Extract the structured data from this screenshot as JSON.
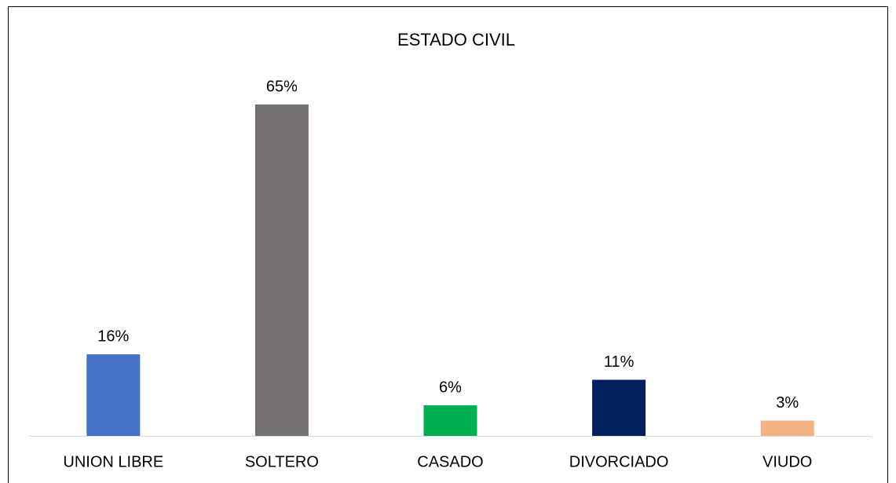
{
  "chart_data": {
    "type": "bar",
    "title": "ESTADO CIVIL",
    "categories": [
      "UNION LIBRE",
      "SOLTERO",
      "CASADO",
      "DIVORCIADO",
      "VIUDO"
    ],
    "values": [
      16,
      65,
      6,
      11,
      3
    ],
    "value_labels": [
      "16%",
      "65%",
      "6%",
      "11%",
      "3%"
    ],
    "colors": [
      "#4472c4",
      "#767171",
      "#00b050",
      "#002060",
      "#f4b183"
    ]
  }
}
